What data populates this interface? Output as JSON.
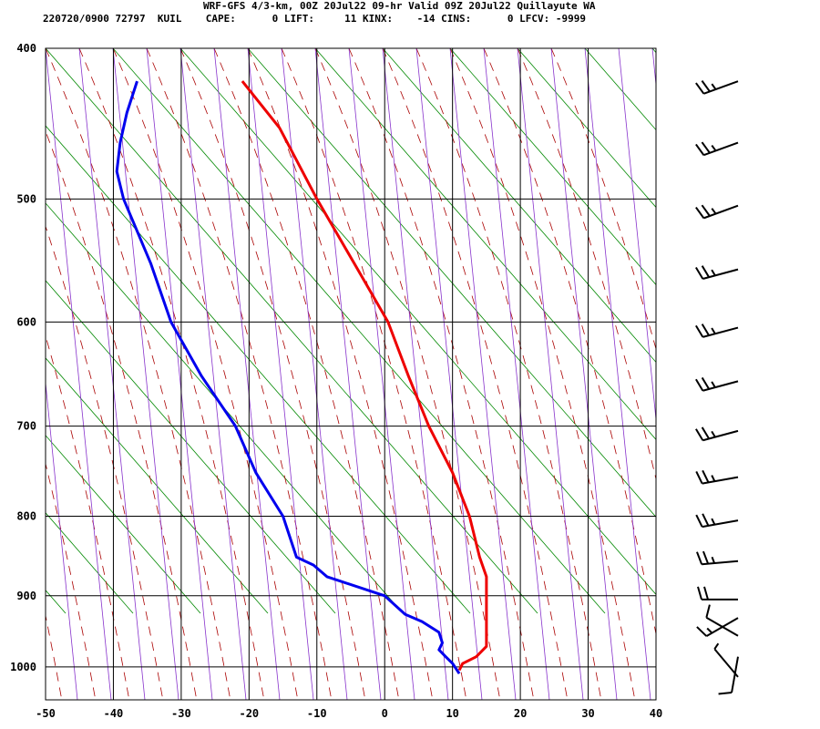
{
  "header": {
    "line1": "WRF-GFS 4/3-km, 00Z 20Jul22 09-hr Valid 09Z 20Jul22 Quillayute WA",
    "line2": "220720/0900 72797  KUIL    CAPE:      0 LIFT:     11 KINX:    -14 CINS:      0 LFCV: -9999"
  },
  "chart_data": {
    "type": "line",
    "subtype": "skew-t log-p sounding",
    "title": "WRF-GFS 4/3-km, 00Z 20Jul22 09-hr Valid 09Z 20Jul22 Quillayute WA",
    "xlabel": "",
    "ylabel": "",
    "x_ticks": [
      -50,
      -40,
      -30,
      -20,
      -10,
      0,
      10,
      20,
      30,
      40
    ],
    "y_ticks": [
      400,
      500,
      600,
      700,
      800,
      900,
      1000
    ],
    "xlim": [
      -50,
      40
    ],
    "ylim": [
      1050,
      400
    ],
    "y_scale": "log",
    "grid": true,
    "series": [
      {
        "name": "",
        "color": "#ee0000",
        "points": [
          {
            "p": 1005,
            "t": 11.0
          },
          {
            "p": 995,
            "t": 11.5
          },
          {
            "p": 985,
            "t": 13.5
          },
          {
            "p": 970,
            "t": 15.0
          },
          {
            "p": 950,
            "t": 15.0
          },
          {
            "p": 925,
            "t": 15.0
          },
          {
            "p": 900,
            "t": 15.0
          },
          {
            "p": 875,
            "t": 15.0
          },
          {
            "p": 850,
            "t": 14.0
          },
          {
            "p": 800,
            "t": 12.5
          },
          {
            "p": 750,
            "t": 10.0
          },
          {
            "p": 700,
            "t": 6.5
          },
          {
            "p": 650,
            "t": 3.5
          },
          {
            "p": 600,
            "t": 0.5
          },
          {
            "p": 550,
            "t": -4.5
          },
          {
            "p": 500,
            "t": -10.0
          },
          {
            "p": 450,
            "t": -15.5
          },
          {
            "p": 420,
            "t": -21.0
          }
        ]
      },
      {
        "name": "",
        "color": "#0000ee",
        "points": [
          {
            "p": 1010,
            "t": 11.0
          },
          {
            "p": 995,
            "t": 10.0
          },
          {
            "p": 985,
            "t": 9.0
          },
          {
            "p": 975,
            "t": 8.0
          },
          {
            "p": 965,
            "t": 8.5
          },
          {
            "p": 950,
            "t": 8.0
          },
          {
            "p": 935,
            "t": 5.5
          },
          {
            "p": 925,
            "t": 3.0
          },
          {
            "p": 900,
            "t": 0.0
          },
          {
            "p": 875,
            "t": -8.5
          },
          {
            "p": 860,
            "t": -10.5
          },
          {
            "p": 850,
            "t": -13.0
          },
          {
            "p": 800,
            "t": -15.0
          },
          {
            "p": 750,
            "t": -19.0
          },
          {
            "p": 700,
            "t": -22.0
          },
          {
            "p": 650,
            "t": -27.0
          },
          {
            "p": 600,
            "t": -31.5
          },
          {
            "p": 550,
            "t": -34.5
          },
          {
            "p": 500,
            "t": -38.5
          },
          {
            "p": 480,
            "t": -39.5
          },
          {
            "p": 460,
            "t": -39.0
          },
          {
            "p": 440,
            "t": -38.0
          },
          {
            "p": 420,
            "t": -36.5
          }
        ]
      }
    ],
    "wind_barbs": [
      {
        "p": 420,
        "dir": 250,
        "speed": 25
      },
      {
        "p": 460,
        "dir": 250,
        "speed": 25
      },
      {
        "p": 505,
        "dir": 250,
        "speed": 25
      },
      {
        "p": 555,
        "dir": 255,
        "speed": 25
      },
      {
        "p": 605,
        "dir": 255,
        "speed": 25
      },
      {
        "p": 655,
        "dir": 255,
        "speed": 25
      },
      {
        "p": 705,
        "dir": 255,
        "speed": 25
      },
      {
        "p": 755,
        "dir": 260,
        "speed": 25
      },
      {
        "p": 805,
        "dir": 260,
        "speed": 25
      },
      {
        "p": 855,
        "dir": 265,
        "speed": 25
      },
      {
        "p": 905,
        "dir": 270,
        "speed": 20
      },
      {
        "p": 930,
        "dir": 240,
        "speed": 15
      },
      {
        "p": 955,
        "dir": 300,
        "speed": 10
      },
      {
        "p": 985,
        "dir": 190,
        "speed": 10
      },
      {
        "p": 1015,
        "dir": 320,
        "speed": 5
      }
    ]
  }
}
